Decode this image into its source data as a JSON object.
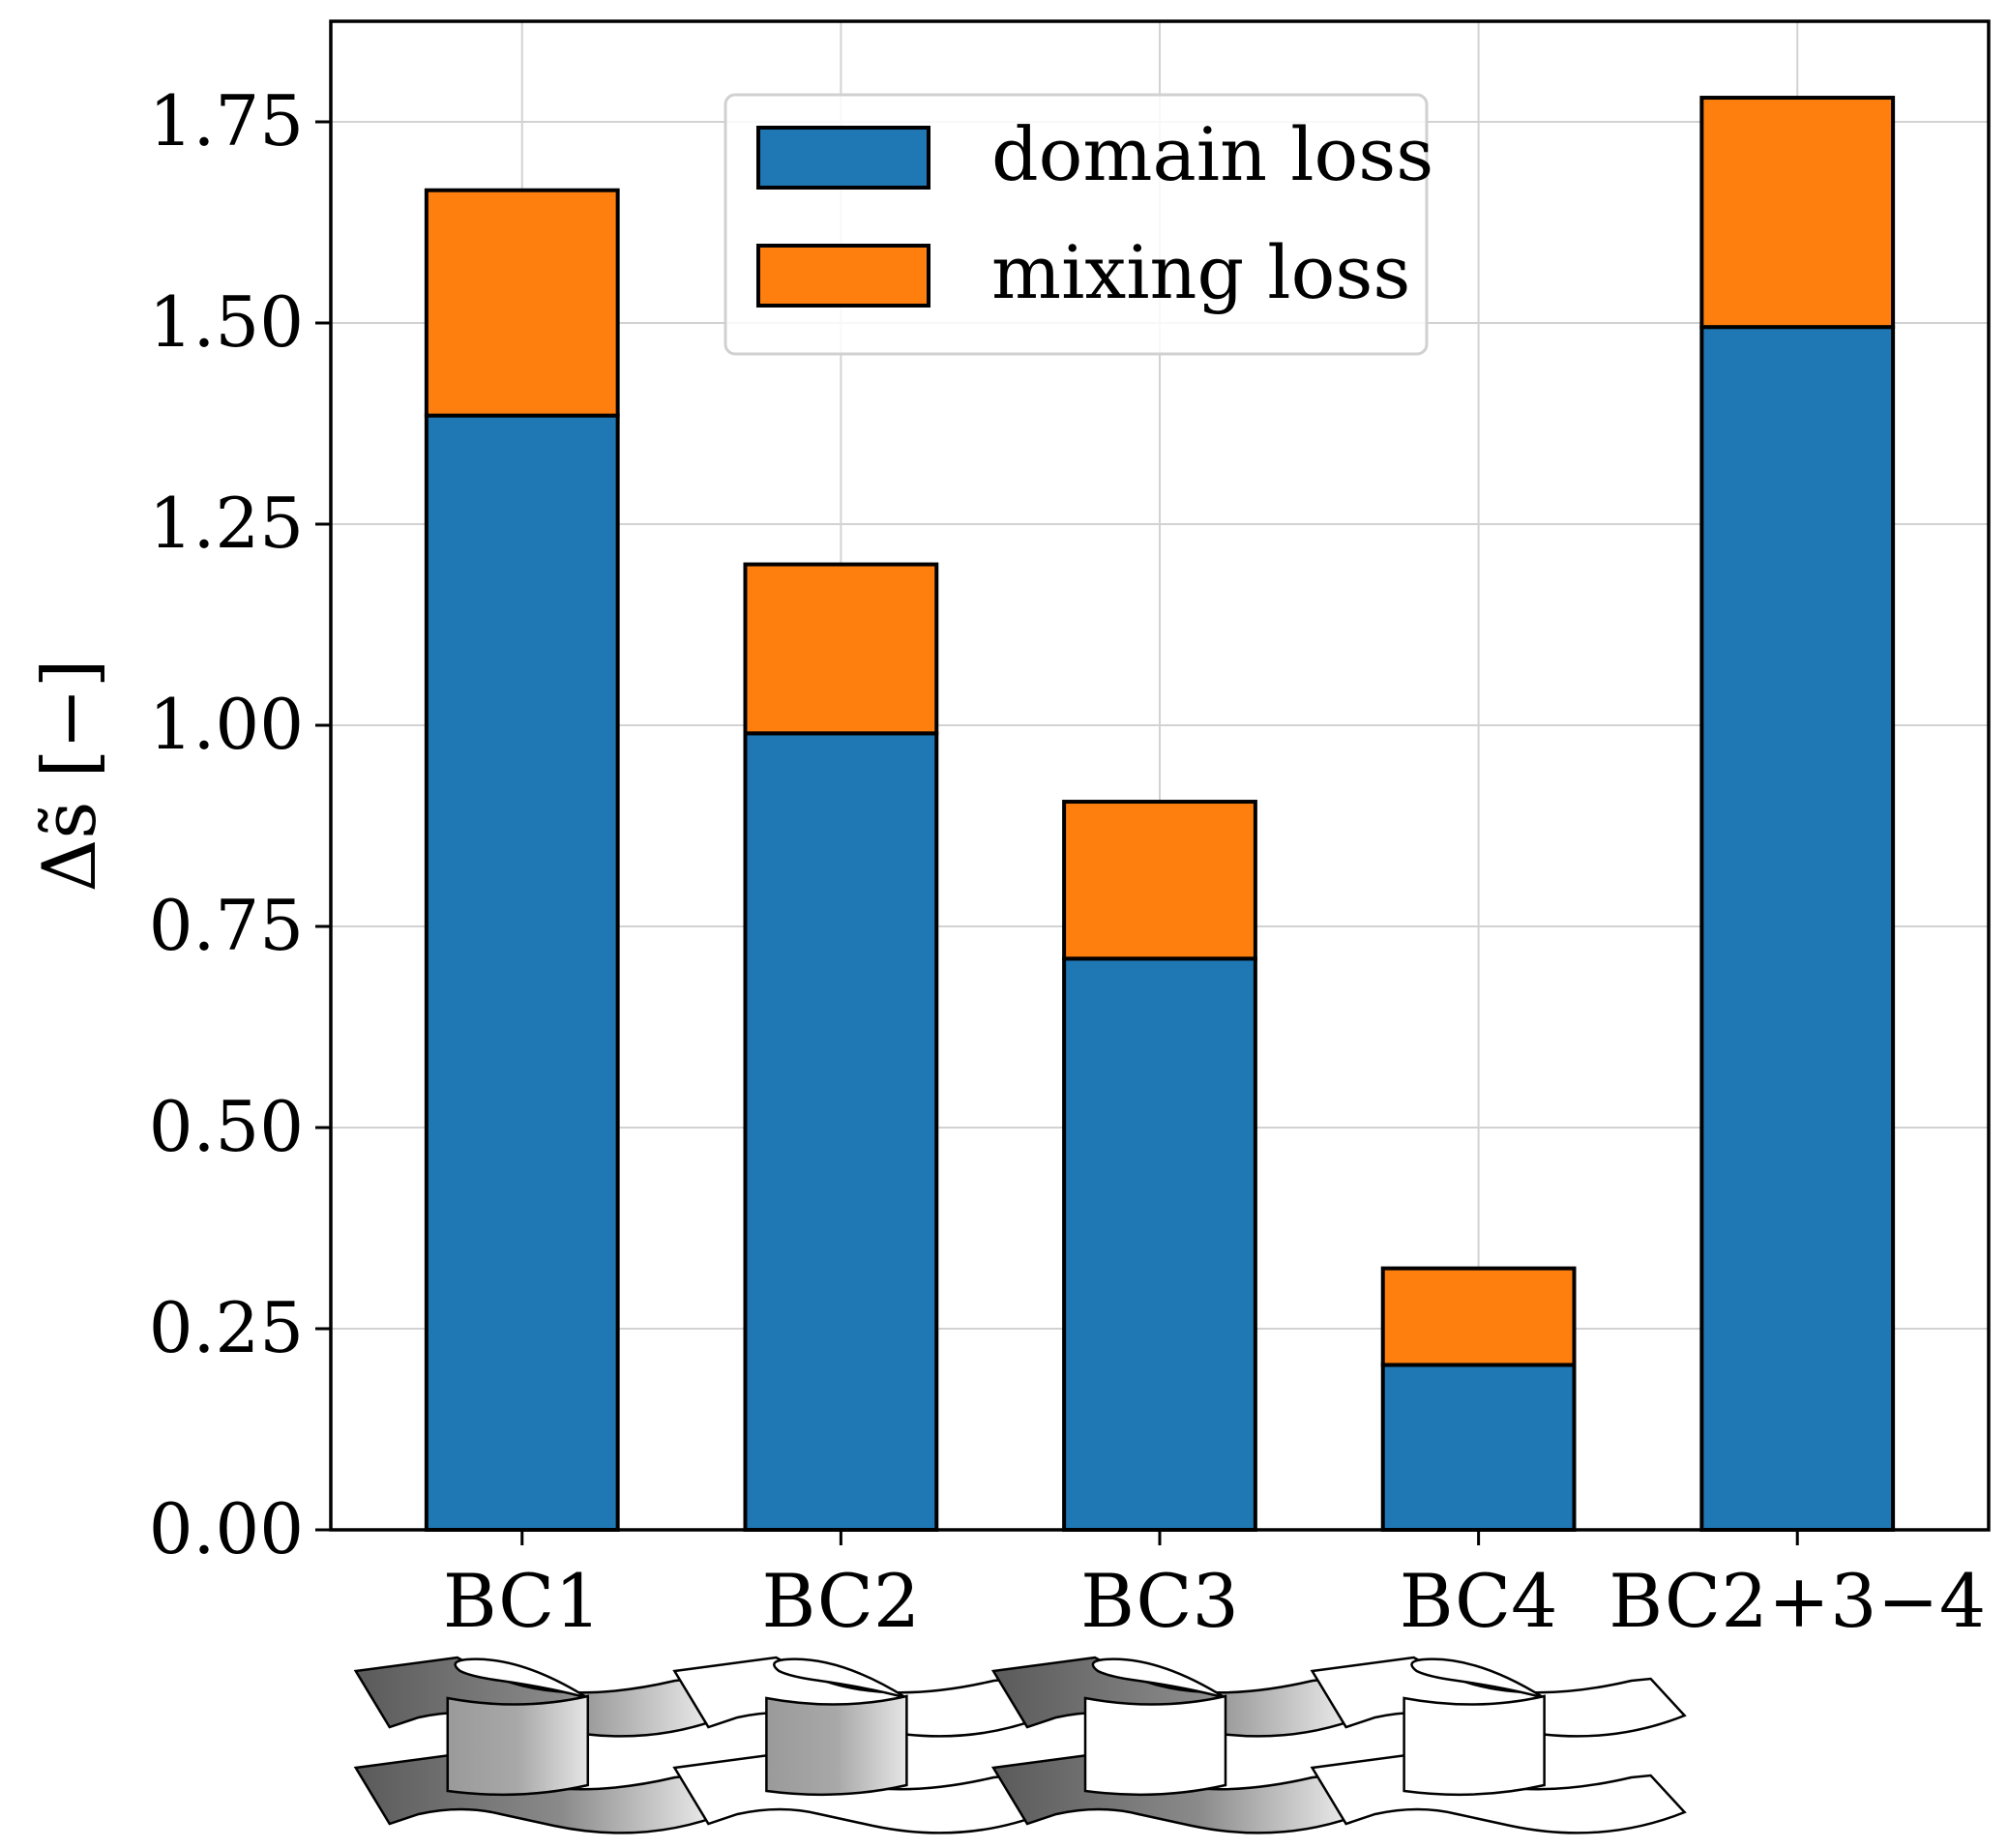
{
  "chart_data": {
    "type": "bar",
    "stacked": true,
    "categories": [
      "BC1",
      "BC2",
      "BC3",
      "BC4",
      "BC2+3−4"
    ],
    "series": [
      {
        "name": "domain loss",
        "color": "#1f77b4",
        "values": [
          1.385,
          0.99,
          0.71,
          0.205,
          1.495
        ]
      },
      {
        "name": "mixing loss",
        "color": "#ff7f0e",
        "values": [
          0.28,
          0.21,
          0.195,
          0.12,
          0.285
        ]
      }
    ],
    "title": "",
    "xlabel": "",
    "ylabel": "Δs̃ [−]",
    "ylim": [
      0,
      1.875
    ],
    "yticks": [
      0,
      0.25,
      0.5,
      0.75,
      1.0,
      1.25,
      1.5,
      1.75
    ],
    "ytick_labels": [
      "0.00",
      "0.25",
      "0.50",
      "0.75",
      "1.00",
      "1.25",
      "1.50",
      "1.75"
    ],
    "grid": true,
    "legend_position": "top-center",
    "bar_edge_color": "#000000"
  },
  "schematics": [
    {
      "category": "BC1",
      "top_fill": "dark",
      "wall_fill": "gradient",
      "bottom_fill": "dark"
    },
    {
      "category": "BC2",
      "top_fill": "white",
      "wall_fill": "gradient",
      "bottom_fill": "white"
    },
    {
      "category": "BC3",
      "top_fill": "dark",
      "wall_fill": "white",
      "bottom_fill": "dark"
    },
    {
      "category": "BC4",
      "top_fill": "white",
      "wall_fill": "white",
      "bottom_fill": "white"
    }
  ]
}
